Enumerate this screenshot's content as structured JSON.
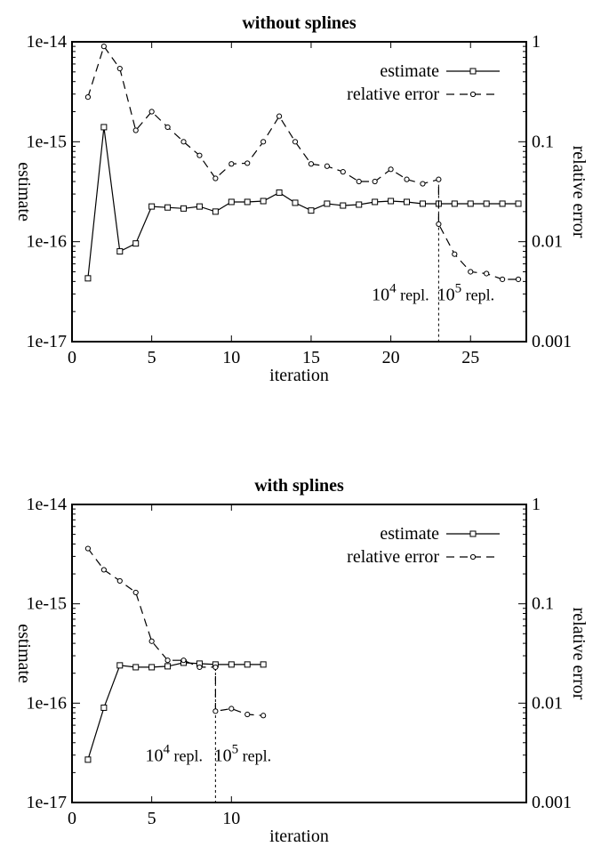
{
  "chart_data": [
    {
      "type": "line",
      "title": "without splines",
      "xlabel": "iteration",
      "ylabel": "estimate",
      "y2label": "relative error",
      "xlim": [
        0,
        28.5
      ],
      "ylim": [
        1e-17,
        1e-14
      ],
      "y2lim": [
        0.001,
        1
      ],
      "yscale": "log",
      "y2scale": "log",
      "xticks": [
        0,
        5,
        10,
        15,
        20,
        25
      ],
      "yticks": [
        1e-17,
        1e-16,
        1e-15,
        1e-14
      ],
      "ytick_labels": [
        "1e-17",
        "1e-16",
        "1e-15",
        "1e-14"
      ],
      "y2ticks": [
        0.001,
        0.01,
        0.1,
        1
      ],
      "y2tick_labels": [
        "0.001",
        "0.01",
        "0.1",
        "1"
      ],
      "grid": false,
      "legend_position": "top-right",
      "series": [
        {
          "name": "estimate",
          "axis": "left",
          "style": "solid",
          "marker": "square",
          "x": [
            1,
            2,
            3,
            4,
            5,
            6,
            7,
            8,
            9,
            10,
            11,
            12,
            13,
            14,
            15,
            16,
            17,
            18,
            19,
            20,
            21,
            22,
            23,
            24,
            25,
            26,
            27,
            28
          ],
          "y": [
            4.3e-17,
            1.4e-15,
            8e-17,
            9.6e-17,
            2.25e-16,
            2.2e-16,
            2.15e-16,
            2.25e-16,
            2e-16,
            2.5e-16,
            2.5e-16,
            2.55e-16,
            3.1e-16,
            2.45e-16,
            2.05e-16,
            2.4e-16,
            2.3e-16,
            2.35e-16,
            2.5e-16,
            2.55e-16,
            2.5e-16,
            2.4e-16,
            2.4e-16,
            2.4e-16,
            2.4e-16,
            2.4e-16,
            2.4e-16,
            2.4e-16
          ]
        },
        {
          "name": "relative error",
          "axis": "right",
          "style": "dashed",
          "marker": "circle",
          "x": [
            1,
            2,
            3,
            4,
            5,
            6,
            7,
            8,
            9,
            10,
            11,
            12,
            13,
            14,
            15,
            16,
            17,
            18,
            19,
            20,
            21,
            22,
            23,
            23,
            24,
            25,
            26,
            27,
            28
          ],
          "y": [
            0.28,
            0.9,
            0.54,
            0.13,
            0.2,
            0.14,
            0.1,
            0.073,
            0.043,
            0.06,
            0.061,
            0.1,
            0.18,
            0.1,
            0.06,
            0.057,
            0.05,
            0.04,
            0.04,
            0.053,
            0.042,
            0.038,
            0.042,
            0.015,
            0.0075,
            0.005,
            0.0048,
            0.0042,
            0.0042
          ]
        }
      ],
      "annotations": [
        {
          "text_base": "10",
          "text_exp": "4",
          "text_rest": "repl.",
          "x": 20.6,
          "y": 0.0026
        },
        {
          "text_base": "10",
          "text_exp": "5",
          "text_rest": "repl.",
          "x": 24.7,
          "y": 0.0026
        }
      ],
      "divider_x": 23
    },
    {
      "type": "line",
      "title": "with splines",
      "xlabel": "iteration",
      "ylabel": "estimate",
      "y2label": "relative error",
      "xlim": [
        0,
        28.5
      ],
      "ylim": [
        1e-17,
        1e-14
      ],
      "y2lim": [
        0.001,
        1
      ],
      "yscale": "log",
      "y2scale": "log",
      "xticks": [
        0,
        5,
        10
      ],
      "yticks": [
        1e-17,
        1e-16,
        1e-15,
        1e-14
      ],
      "ytick_labels": [
        "1e-17",
        "1e-16",
        "1e-15",
        "1e-14"
      ],
      "y2ticks": [
        0.001,
        0.01,
        0.1,
        1
      ],
      "y2tick_labels": [
        "0.001",
        "0.01",
        "0.1",
        "1"
      ],
      "grid": false,
      "legend_position": "top-right",
      "series": [
        {
          "name": "estimate",
          "axis": "left",
          "style": "solid",
          "marker": "square",
          "x": [
            1,
            2,
            3,
            4,
            5,
            6,
            7,
            8,
            9,
            10,
            11,
            12
          ],
          "y": [
            2.7e-17,
            9e-17,
            2.4e-16,
            2.3e-16,
            2.3e-16,
            2.35e-16,
            2.55e-16,
            2.5e-16,
            2.45e-16,
            2.45e-16,
            2.45e-16,
            2.45e-16
          ]
        },
        {
          "name": "relative error",
          "axis": "right",
          "style": "dashed",
          "marker": "circle",
          "x": [
            1,
            2,
            3,
            4,
            5,
            6,
            7,
            8,
            9,
            9,
            10,
            11,
            12
          ],
          "y": [
            0.36,
            0.22,
            0.17,
            0.13,
            0.042,
            0.027,
            0.027,
            0.023,
            0.023,
            0.0083,
            0.0088,
            0.0077,
            0.0075
          ]
        }
      ],
      "annotations": [
        {
          "text_base": "10",
          "text_exp": "4",
          "text_rest": "repl.",
          "x": 6.4,
          "y": 0.0026
        },
        {
          "text_base": "10",
          "text_exp": "5",
          "text_rest": "repl.",
          "x": 10.7,
          "y": 0.0026
        }
      ],
      "divider_x": 9
    }
  ]
}
